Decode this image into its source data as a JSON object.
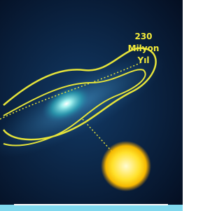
{
  "annotation": {
    "lines": [
      "230",
      "Milyon",
      "Yıl"
    ]
  }
}
